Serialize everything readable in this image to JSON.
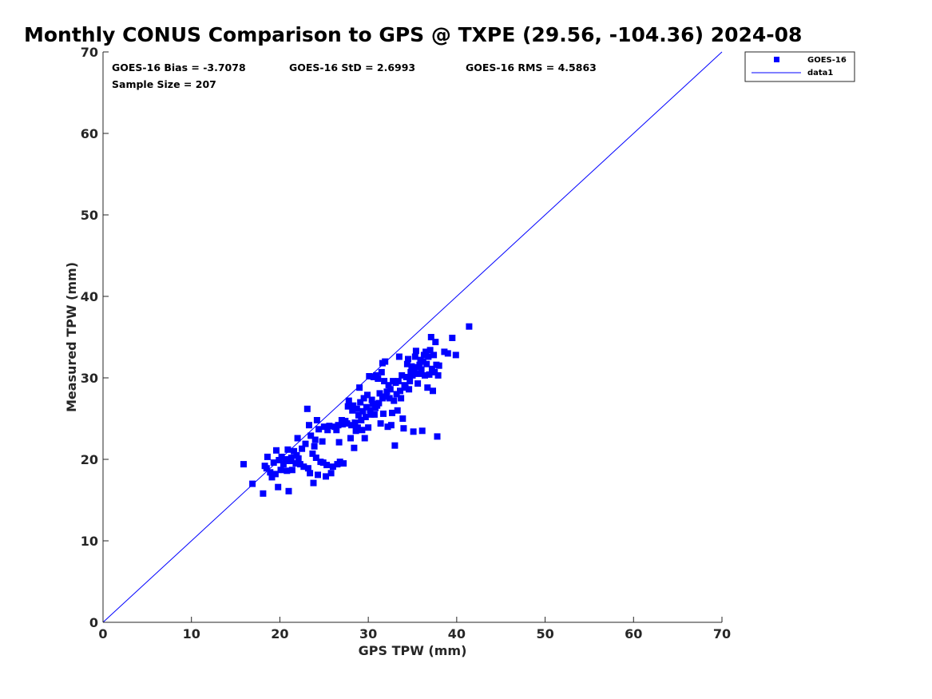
{
  "chart_data": {
    "type": "scatter",
    "title": "Monthly CONUS Comparison to GPS @ TXPE (29.56, -104.36) 2024-08",
    "xlabel": "GPS TPW (mm)",
    "ylabel": "Measured TPW (mm)",
    "xlim": [
      0,
      70
    ],
    "ylim": [
      0,
      70
    ],
    "xticks": [
      0,
      10,
      20,
      30,
      40,
      50,
      60,
      70
    ],
    "yticks": [
      0,
      10,
      20,
      30,
      40,
      50,
      60,
      70
    ],
    "grid": false,
    "legend_position": "outside-top-right",
    "colors": {
      "marker": "#0000ff",
      "line": "#0000ff",
      "axis": "#262626"
    },
    "stats": {
      "bias": "GOES-16 Bias = -3.7078",
      "std": "GOES-16 StD = 2.6993",
      "rms": "GOES-16 RMS = 4.5863",
      "sample": "Sample Size = 207"
    },
    "series": [
      {
        "name": "GOES-16",
        "marker": "square",
        "points": [
          [
            15.9,
            19.4
          ],
          [
            16.9,
            17.0
          ],
          [
            18.1,
            15.8
          ],
          [
            18.3,
            19.2
          ],
          [
            18.5,
            18.9
          ],
          [
            18.6,
            20.3
          ],
          [
            18.9,
            18.4
          ],
          [
            19.1,
            17.8
          ],
          [
            19.3,
            19.6
          ],
          [
            19.5,
            18.2
          ],
          [
            19.6,
            21.1
          ],
          [
            19.8,
            16.6
          ],
          [
            19.9,
            19.9
          ],
          [
            20.1,
            18.7
          ],
          [
            20.2,
            20.3
          ],
          [
            20.4,
            19.4
          ],
          [
            20.6,
            20.0
          ],
          [
            20.8,
            18.6
          ],
          [
            20.9,
            21.2
          ],
          [
            21.0,
            16.1
          ],
          [
            21.1,
            19.8
          ],
          [
            21.3,
            20.2
          ],
          [
            21.4,
            18.7
          ],
          [
            21.6,
            21.0
          ],
          [
            21.8,
            19.5
          ],
          [
            21.9,
            20.5
          ],
          [
            22.0,
            22.6
          ],
          [
            22.1,
            20.1
          ],
          [
            22.3,
            19.4
          ],
          [
            22.5,
            21.3
          ],
          [
            22.7,
            19.1
          ],
          [
            22.9,
            21.9
          ],
          [
            23.1,
            26.2
          ],
          [
            23.2,
            18.9
          ],
          [
            23.3,
            24.2
          ],
          [
            23.4,
            18.3
          ],
          [
            23.5,
            22.9
          ],
          [
            23.7,
            20.7
          ],
          [
            23.8,
            17.1
          ],
          [
            23.9,
            21.6
          ],
          [
            24.0,
            22.4
          ],
          [
            24.1,
            20.2
          ],
          [
            24.2,
            24.8
          ],
          [
            24.3,
            18.1
          ],
          [
            24.4,
            23.7
          ],
          [
            24.6,
            19.7
          ],
          [
            24.8,
            22.2
          ],
          [
            24.9,
            19.6
          ],
          [
            25.0,
            24.0
          ],
          [
            25.2,
            17.9
          ],
          [
            25.3,
            19.3
          ],
          [
            25.4,
            23.6
          ],
          [
            25.6,
            24.1
          ],
          [
            25.8,
            18.3
          ],
          [
            26.0,
            19.1
          ],
          [
            26.2,
            24.0
          ],
          [
            26.4,
            23.6
          ],
          [
            26.5,
            19.4
          ],
          [
            26.6,
            24.2
          ],
          [
            26.7,
            22.1
          ],
          [
            26.8,
            19.7
          ],
          [
            27.0,
            24.8
          ],
          [
            27.1,
            24.3
          ],
          [
            27.2,
            19.5
          ],
          [
            27.4,
            24.7
          ],
          [
            27.6,
            24.4
          ],
          [
            27.7,
            26.5
          ],
          [
            27.8,
            27.2
          ],
          [
            28.0,
            22.6
          ],
          [
            28.1,
            24.2
          ],
          [
            28.2,
            26.0
          ],
          [
            28.3,
            26.6
          ],
          [
            28.4,
            21.4
          ],
          [
            28.5,
            24.5
          ],
          [
            28.6,
            23.5
          ],
          [
            28.7,
            26.2
          ],
          [
            28.8,
            23.9
          ],
          [
            28.9,
            25.4
          ],
          [
            29.0,
            28.8
          ],
          [
            29.1,
            27.0
          ],
          [
            29.2,
            24.8
          ],
          [
            29.3,
            23.6
          ],
          [
            29.4,
            25.9
          ],
          [
            29.5,
            27.5
          ],
          [
            29.6,
            22.6
          ],
          [
            29.7,
            25.2
          ],
          [
            29.8,
            26.4
          ],
          [
            29.9,
            27.9
          ],
          [
            30.0,
            23.9
          ],
          [
            30.1,
            30.2
          ],
          [
            30.2,
            26.0
          ],
          [
            30.3,
            25.5
          ],
          [
            30.4,
            27.3
          ],
          [
            30.5,
            26.8
          ],
          [
            30.6,
            30.1
          ],
          [
            30.7,
            25.5
          ],
          [
            30.8,
            26.3
          ],
          [
            30.9,
            30.3
          ],
          [
            31.0,
            26.6
          ],
          [
            31.1,
            29.9
          ],
          [
            31.2,
            26.9
          ],
          [
            31.3,
            28.1
          ],
          [
            31.4,
            24.4
          ],
          [
            31.5,
            30.7
          ],
          [
            31.6,
            27.5
          ],
          [
            31.6,
            31.8
          ],
          [
            31.7,
            25.6
          ],
          [
            31.8,
            29.6
          ],
          [
            31.9,
            32.0
          ],
          [
            32.0,
            27.7
          ],
          [
            32.1,
            28.3
          ],
          [
            32.2,
            24.0
          ],
          [
            32.3,
            29.1
          ],
          [
            32.4,
            27.5
          ],
          [
            32.5,
            28.6
          ],
          [
            32.6,
            24.2
          ],
          [
            32.7,
            25.7
          ],
          [
            32.8,
            29.6
          ],
          [
            32.9,
            27.2
          ],
          [
            33.0,
            21.7
          ],
          [
            33.1,
            29.4
          ],
          [
            33.2,
            28.0
          ],
          [
            33.3,
            26.0
          ],
          [
            33.4,
            29.6
          ],
          [
            33.5,
            32.6
          ],
          [
            33.6,
            28.4
          ],
          [
            33.7,
            27.5
          ],
          [
            33.8,
            30.3
          ],
          [
            33.9,
            25.0
          ],
          [
            34.0,
            23.8
          ],
          [
            34.1,
            29.1
          ],
          [
            34.2,
            28.8
          ],
          [
            34.3,
            30.1
          ],
          [
            34.4,
            31.7
          ],
          [
            34.5,
            32.3
          ],
          [
            34.6,
            28.6
          ],
          [
            34.7,
            29.6
          ],
          [
            34.8,
            30.7
          ],
          [
            34.9,
            31.4
          ],
          [
            35.0,
            30.3
          ],
          [
            35.1,
            23.4
          ],
          [
            35.2,
            31.0
          ],
          [
            35.3,
            32.6
          ],
          [
            35.4,
            33.3
          ],
          [
            35.5,
            31.3
          ],
          [
            35.6,
            29.3
          ],
          [
            35.7,
            30.5
          ],
          [
            35.8,
            31.6
          ],
          [
            35.9,
            32.2
          ],
          [
            36.0,
            31.0
          ],
          [
            36.1,
            23.5
          ],
          [
            36.2,
            32.0
          ],
          [
            36.3,
            32.8
          ],
          [
            36.4,
            30.3
          ],
          [
            36.5,
            33.2
          ],
          [
            36.6,
            31.7
          ],
          [
            36.7,
            28.8
          ],
          [
            36.8,
            32.6
          ],
          [
            36.9,
            30.4
          ],
          [
            37.0,
            33.4
          ],
          [
            37.1,
            35.0
          ],
          [
            37.2,
            31.1
          ],
          [
            37.3,
            28.4
          ],
          [
            37.4,
            32.8
          ],
          [
            37.5,
            30.7
          ],
          [
            37.6,
            34.4
          ],
          [
            37.7,
            31.6
          ],
          [
            37.8,
            22.8
          ],
          [
            37.9,
            30.3
          ],
          [
            38.0,
            31.5
          ],
          [
            38.6,
            33.2
          ],
          [
            39.0,
            33.0
          ],
          [
            39.5,
            34.9
          ],
          [
            39.9,
            32.8
          ],
          [
            41.4,
            36.3
          ]
        ]
      },
      {
        "name": "data1",
        "kind": "line",
        "x": [
          0,
          70
        ],
        "y": [
          0,
          70
        ]
      }
    ]
  }
}
